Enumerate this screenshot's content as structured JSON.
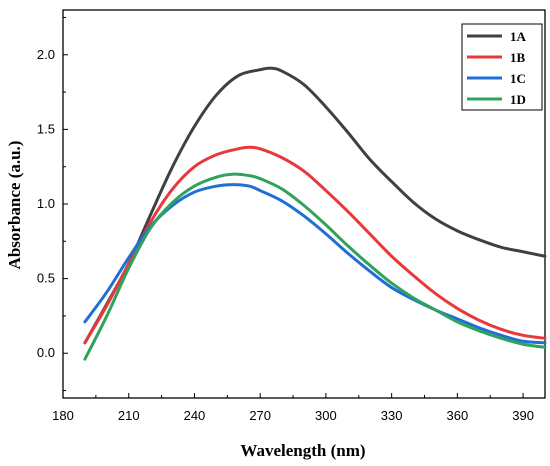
{
  "chart_data": {
    "type": "line",
    "title": "",
    "xlabel": "Wavelength (nm)",
    "ylabel": "Absorbance (a.u.)",
    "xlim": [
      180,
      400
    ],
    "ylim": [
      -0.3,
      2.3
    ],
    "x_ticks": [
      180,
      210,
      240,
      270,
      300,
      330,
      360,
      390
    ],
    "y_ticks": [
      0.0,
      0.5,
      1.0,
      1.5,
      2.0
    ],
    "x_tick_labels": [
      "180",
      "210",
      "240",
      "270",
      "300",
      "330",
      "360",
      "390"
    ],
    "y_tick_labels": [
      "0.0",
      "0.5",
      "1.0",
      "1.5",
      "2.0"
    ],
    "grid": false,
    "legend_position": "top-right",
    "series": [
      {
        "name": "1A",
        "color": "#404040",
        "x": [
          190,
          200,
          210,
          220,
          230,
          240,
          250,
          260,
          270,
          275,
          280,
          290,
          300,
          310,
          320,
          330,
          340,
          350,
          360,
          370,
          380,
          390,
          400
        ],
        "y": [
          0.07,
          0.33,
          0.6,
          0.93,
          1.25,
          1.52,
          1.73,
          1.86,
          1.9,
          1.91,
          1.89,
          1.8,
          1.65,
          1.48,
          1.3,
          1.15,
          1.01,
          0.9,
          0.82,
          0.76,
          0.71,
          0.68,
          0.65
        ]
      },
      {
        "name": "1B",
        "color": "#e8383b",
        "x": [
          190,
          200,
          210,
          220,
          230,
          240,
          250,
          260,
          265,
          270,
          280,
          290,
          300,
          310,
          320,
          330,
          340,
          350,
          360,
          370,
          380,
          390,
          400
        ],
        "y": [
          0.07,
          0.32,
          0.6,
          0.88,
          1.1,
          1.25,
          1.33,
          1.37,
          1.38,
          1.37,
          1.31,
          1.22,
          1.09,
          0.95,
          0.8,
          0.65,
          0.52,
          0.4,
          0.3,
          0.22,
          0.16,
          0.12,
          0.1
        ]
      },
      {
        "name": "1C",
        "color": "#1f6fd6",
        "x": [
          190,
          200,
          210,
          220,
          230,
          240,
          250,
          258,
          265,
          270,
          280,
          290,
          300,
          310,
          320,
          330,
          340,
          350,
          360,
          370,
          380,
          390,
          400
        ],
        "y": [
          0.21,
          0.41,
          0.64,
          0.85,
          0.99,
          1.08,
          1.12,
          1.13,
          1.12,
          1.09,
          1.02,
          0.92,
          0.8,
          0.67,
          0.55,
          0.44,
          0.36,
          0.29,
          0.23,
          0.17,
          0.12,
          0.08,
          0.07
        ]
      },
      {
        "name": "1D",
        "color": "#2ea35c",
        "x": [
          190,
          200,
          210,
          220,
          230,
          240,
          250,
          258,
          265,
          270,
          280,
          290,
          300,
          310,
          320,
          330,
          340,
          350,
          360,
          370,
          380,
          390,
          400
        ],
        "y": [
          -0.04,
          0.25,
          0.57,
          0.84,
          1.01,
          1.12,
          1.18,
          1.2,
          1.19,
          1.17,
          1.1,
          0.99,
          0.86,
          0.72,
          0.59,
          0.47,
          0.37,
          0.29,
          0.21,
          0.15,
          0.1,
          0.06,
          0.04
        ]
      }
    ]
  }
}
